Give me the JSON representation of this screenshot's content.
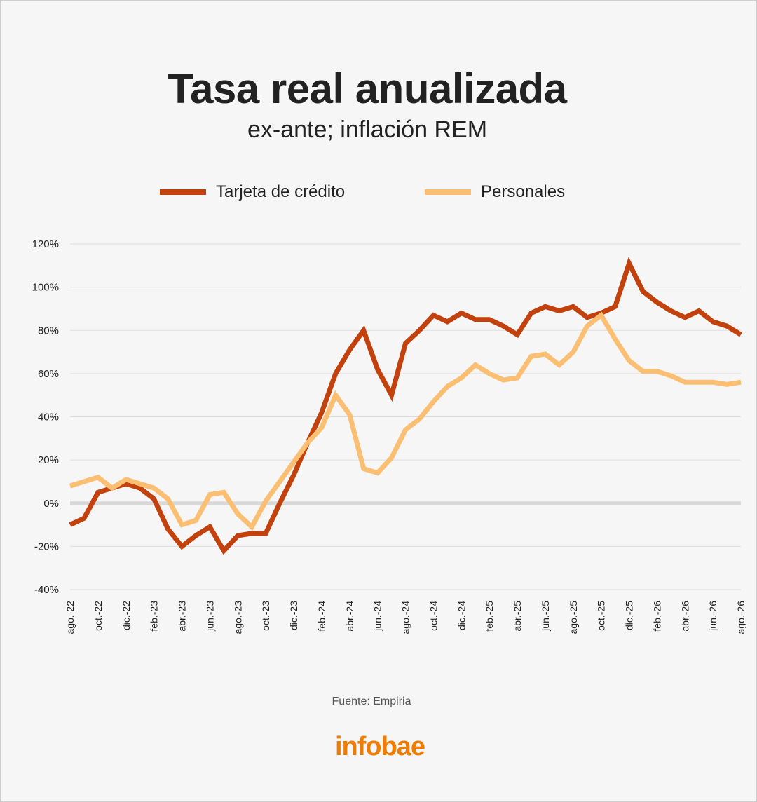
{
  "colors": {
    "tarjeta": "#c2410c",
    "personales": "#fbbf73",
    "brand": "#f07c00"
  },
  "chart_data": {
    "type": "line",
    "title": "Tasa real anualizada",
    "subtitle": "ex-ante; inflación REM",
    "source": "Fuente: Empiria",
    "logo": "infobae",
    "ylim": [
      -40,
      120
    ],
    "yticks": [
      -40,
      -20,
      0,
      20,
      40,
      60,
      80,
      100,
      120
    ],
    "ytick_labels": [
      "-40%",
      "-20%",
      "0%",
      "20%",
      "40%",
      "60%",
      "80%",
      "100%",
      "120%"
    ],
    "legend_position": "top",
    "grid": true,
    "x": [
      "ago.-22",
      "sep.-22",
      "oct.-22",
      "nov.-22",
      "dic.-22",
      "ene.-23",
      "feb.-23",
      "mar.-23",
      "abr.-23",
      "may.-23",
      "jun.-23",
      "jul.-23",
      "ago.-23",
      "sep.-23",
      "oct.-23",
      "nov.-23",
      "dic.-23",
      "ene.-24",
      "feb.-24",
      "mar.-24",
      "abr.-24",
      "may.-24",
      "jun.-24",
      "jul.-24",
      "ago.-24",
      "sep.-24",
      "oct.-24",
      "nov.-24",
      "dic.-24",
      "ene.-25",
      "feb.-25",
      "mar.-25",
      "abr.-25",
      "may.-25",
      "jun.-25",
      "jul.-25",
      "ago.-25",
      "sep.-25",
      "oct.-25",
      "nov.-25",
      "dic.-25",
      "ene.-26",
      "feb.-26",
      "mar.-26",
      "abr.-26",
      "may.-26",
      "jun.-26",
      "jul.-26",
      "ago.-26"
    ],
    "xtick_labels": [
      "ago.-22",
      "oct.-22",
      "dic.-22",
      "feb.-23",
      "abr.-23",
      "jun.-23",
      "ago.-23",
      "oct.-23",
      "dic.-23",
      "feb.-24",
      "abr.-24",
      "jun.-24",
      "ago.-24",
      "oct.-24",
      "dic.-24",
      "feb.-25",
      "abr.-25",
      "jun.-25",
      "ago.-25",
      "oct.-25",
      "dic.-25",
      "feb.-26",
      "abr.-26",
      "jun.-26",
      "ago.-26"
    ],
    "series": [
      {
        "name": "Tarjeta de crédito",
        "values": [
          -10,
          -7,
          5,
          7,
          9,
          7,
          2,
          -12,
          -20,
          -15,
          -11,
          -22,
          -15,
          -14,
          -14,
          0,
          13,
          28,
          42,
          60,
          71,
          80,
          62,
          50,
          74,
          80,
          87,
          84,
          88,
          85,
          85,
          82,
          78,
          88,
          91,
          89,
          91,
          86,
          88,
          91,
          111,
          98,
          93,
          89,
          86,
          89,
          84,
          82,
          78
        ]
      },
      {
        "name": "Personales",
        "values": [
          8,
          10,
          12,
          7,
          11,
          9,
          7,
          2,
          -10,
          -8,
          4,
          5,
          -5,
          -11,
          1,
          10,
          19,
          28,
          35,
          50,
          41,
          16,
          14,
          21,
          34,
          39,
          47,
          54,
          58,
          64,
          60,
          57,
          58,
          68,
          69,
          64,
          70,
          82,
          87,
          76,
          66,
          61,
          61,
          59,
          56,
          56,
          56,
          55,
          56
        ]
      }
    ]
  }
}
